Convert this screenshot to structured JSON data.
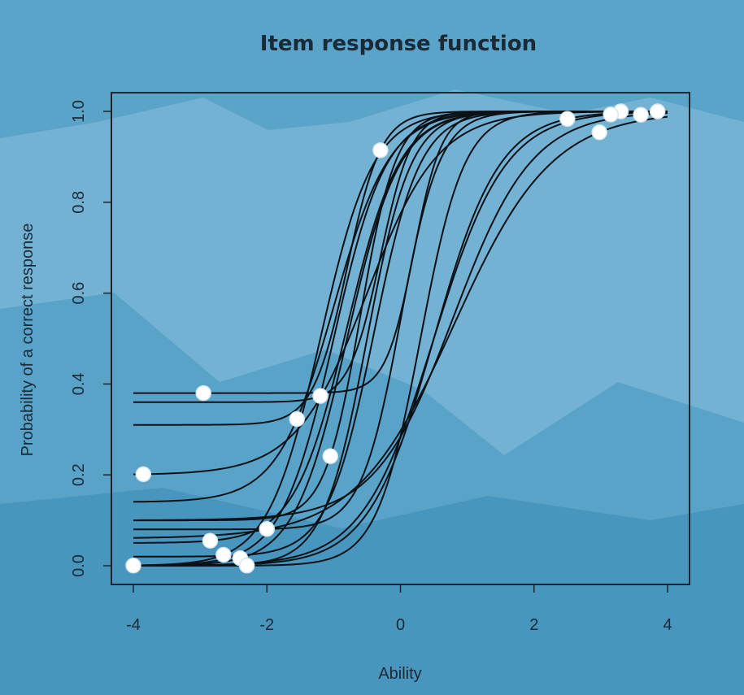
{
  "colors": {
    "background": "#5aa3c9",
    "plot_background": "#4f9cc4",
    "mountain_light": "#8ac0dc",
    "mountain_dark": "#3e8cb6",
    "curve": "#0b1217",
    "marker": "#ffffff"
  },
  "chart_data": {
    "type": "line",
    "title": "Item response function",
    "xlabel": "Ability",
    "ylabel": "Probability of a correct response",
    "xlim": [
      -4,
      4
    ],
    "ylim": [
      0,
      1
    ],
    "xticks": [
      "-4",
      "-2",
      "0",
      "2",
      "4"
    ],
    "yticks": [
      "0.0",
      "0.2",
      "0.4",
      "0.6",
      "0.8",
      "1.0"
    ],
    "grid": false,
    "legend": "none",
    "series": [
      {
        "a": 1.1,
        "b": -0.5,
        "c": 0.2,
        "marker_x": -3.85
      },
      {
        "a": 1.5,
        "b": -1.0,
        "c": 0.0,
        "marker_x": -4.0
      },
      {
        "a": 1.5,
        "b": -1.2,
        "c": 0.0,
        "marker_x": -2.65
      },
      {
        "a": 1.5,
        "b": -0.8,
        "c": 0.0,
        "marker_x": -2.4
      },
      {
        "a": 1.5,
        "b": -0.8,
        "c": 0.05,
        "marker_x": -2.85
      },
      {
        "a": 1.8,
        "b": 0.3,
        "c": 0.0,
        "marker_x": -2.3
      },
      {
        "a": 2.0,
        "b": 0.0,
        "c": 0.08,
        "marker_x": -2.0
      },
      {
        "a": 2.2,
        "b": -0.6,
        "c": 0.1,
        "marker_x": -1.05
      },
      {
        "a": 1.4,
        "b": -1.0,
        "c": 0.14,
        "marker_x": -1.55
      },
      {
        "a": 2.5,
        "b": -0.3,
        "c": 0.36,
        "marker_x": -1.2
      },
      {
        "a": 2.8,
        "b": 0.2,
        "c": 0.38,
        "marker_x": -2.95
      },
      {
        "a": 2.3,
        "b": -0.8,
        "c": 0.31,
        "marker_x": -0.3
      },
      {
        "a": 1.2,
        "b": 0.5,
        "c": 0.0,
        "marker_x": 2.5
      },
      {
        "a": 1.8,
        "b": -0.5,
        "c": 0.0,
        "marker_x": 3.3
      },
      {
        "a": 1.0,
        "b": 0.8,
        "c": 0.1,
        "marker_x": 3.6
      },
      {
        "a": 1.7,
        "b": -0.4,
        "c": 0.02,
        "marker_x": 3.85
      },
      {
        "a": 1.1,
        "b": 0.5,
        "c": 0.0,
        "marker_x": 3.15
      },
      {
        "a": 0.8,
        "b": 0.8,
        "c": 0.06,
        "marker_x": 2.98
      }
    ]
  }
}
